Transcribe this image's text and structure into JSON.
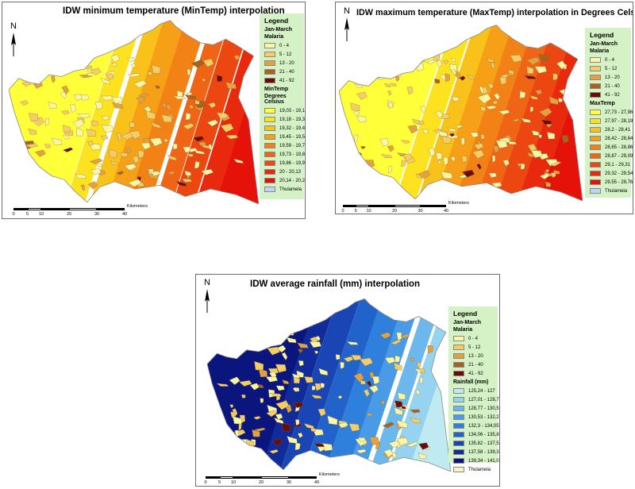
{
  "panels": [
    {
      "id": "mintemp",
      "title": "IDW minimum temperature (MinTemp) interpolation",
      "north": "N",
      "legend": {
        "heading": "Legend",
        "period": "Jan-March",
        "malaria_title": "Malaria",
        "malaria_classes": [
          {
            "label": "0 - 4",
            "color": "#fbf5a6"
          },
          {
            "label": "5 - 12",
            "color": "#f5cd67"
          },
          {
            "label": "13 - 20",
            "color": "#e3a23f"
          },
          {
            "label": "21 - 40",
            "color": "#a8621d"
          },
          {
            "label": "41 - 92",
            "color": "#6b0c05"
          }
        ],
        "variable_title": "MinTemp",
        "variable_subtitle": "Degrees Celsius",
        "classes": [
          {
            "label": "19,03 - 19,17",
            "color": "#ffff3a"
          },
          {
            "label": "19,18 - 19,31",
            "color": "#fde21f"
          },
          {
            "label": "19,32 - 19,44",
            "color": "#f9c21b"
          },
          {
            "label": "19,45 - 19,58",
            "color": "#f6a018"
          },
          {
            "label": "19,59 - 19,72",
            "color": "#f38216"
          },
          {
            "label": "19,73 - 19,85",
            "color": "#f06515"
          },
          {
            "label": "19,86 - 19,99",
            "color": "#ec4711"
          },
          {
            "label": "20 - 20,13",
            "color": "#e8290d"
          },
          {
            "label": "20,14 - 20,26",
            "color": "#e41208"
          }
        ],
        "boundary_label": "Thulamela",
        "boundary_color": "#c3d5f5"
      },
      "scale": {
        "ticks": [
          "0",
          "5",
          "10",
          "20",
          "30",
          "40"
        ],
        "unit": "Kilometers"
      }
    },
    {
      "id": "maxtemp",
      "title": "IDW maximum temperature (MaxTemp) interpolation in Degrees Celsius",
      "north": "N",
      "legend": {
        "heading": "Legend",
        "period": "Jan-March",
        "malaria_title": "Malaria",
        "malaria_classes": [
          {
            "label": "0 - 4",
            "color": "#fbf5a6"
          },
          {
            "label": "5 - 12",
            "color": "#f5cd67"
          },
          {
            "label": "13 - 20",
            "color": "#e3a23f"
          },
          {
            "label": "21 - 40",
            "color": "#a8621d"
          },
          {
            "label": "41 - 92",
            "color": "#6b0c05"
          }
        ],
        "variable_title": "MaxTemp",
        "variable_subtitle": "",
        "classes": [
          {
            "label": "27,73 - 27,96",
            "color": "#ffff3a"
          },
          {
            "label": "27,97 - 28,19",
            "color": "#fde21f"
          },
          {
            "label": "28,2 - 28,41",
            "color": "#f9c21b"
          },
          {
            "label": "28,42 - 28,64",
            "color": "#f6a018"
          },
          {
            "label": "28,65 - 28,86",
            "color": "#f38216"
          },
          {
            "label": "28,87 - 29,09",
            "color": "#f06515"
          },
          {
            "label": "29,1 - 29,31",
            "color": "#ec4711"
          },
          {
            "label": "29,32 - 29,54",
            "color": "#e8290d"
          },
          {
            "label": "29,55 - 29,76",
            "color": "#e41208"
          }
        ],
        "boundary_label": "Thulamela",
        "boundary_color": "#c3d5f5"
      },
      "scale": {
        "ticks": [
          "0",
          "5",
          "10",
          "20",
          "30",
          "40"
        ],
        "unit": "Kilometers"
      }
    },
    {
      "id": "rainfall",
      "title": "IDW average rainfall (mm)  interpolation",
      "north": "N",
      "legend": {
        "heading": "Legend",
        "period": "Jan-March",
        "malaria_title": "Malaria",
        "malaria_classes": [
          {
            "label": "0 - 4",
            "color": "#fbf5a6"
          },
          {
            "label": "5 - 12",
            "color": "#f5cd67"
          },
          {
            "label": "13 - 20",
            "color": "#e3a23f"
          },
          {
            "label": "21 - 40",
            "color": "#a8621d"
          },
          {
            "label": "41 - 92",
            "color": "#6b0c05"
          }
        ],
        "variable_title": "Rainfall (mm)",
        "variable_subtitle": "",
        "classes": [
          {
            "label": "125,24 - 127",
            "color": "#bfeaf2"
          },
          {
            "label": "127,01 - 128,76",
            "color": "#96d3f0"
          },
          {
            "label": "128,77 - 130,52",
            "color": "#6cb8ec"
          },
          {
            "label": "130,53 - 132,29",
            "color": "#4a9be6"
          },
          {
            "label": "132,3 - 134,05",
            "color": "#2f7fdc"
          },
          {
            "label": "134,06 - 135,81",
            "color": "#2262cb"
          },
          {
            "label": "135,82 - 137,57",
            "color": "#1a45b4"
          },
          {
            "label": "137,58 - 139,33",
            "color": "#112c9a"
          },
          {
            "label": "139,34 - 141,09",
            "color": "#0a167e"
          }
        ],
        "boundary_label": "Thulamela",
        "boundary_color": "#f4f6c4"
      },
      "scale": {
        "ticks": [
          "0",
          "5",
          "10",
          "20",
          "30",
          "40"
        ],
        "unit": "Kilometers"
      }
    }
  ]
}
